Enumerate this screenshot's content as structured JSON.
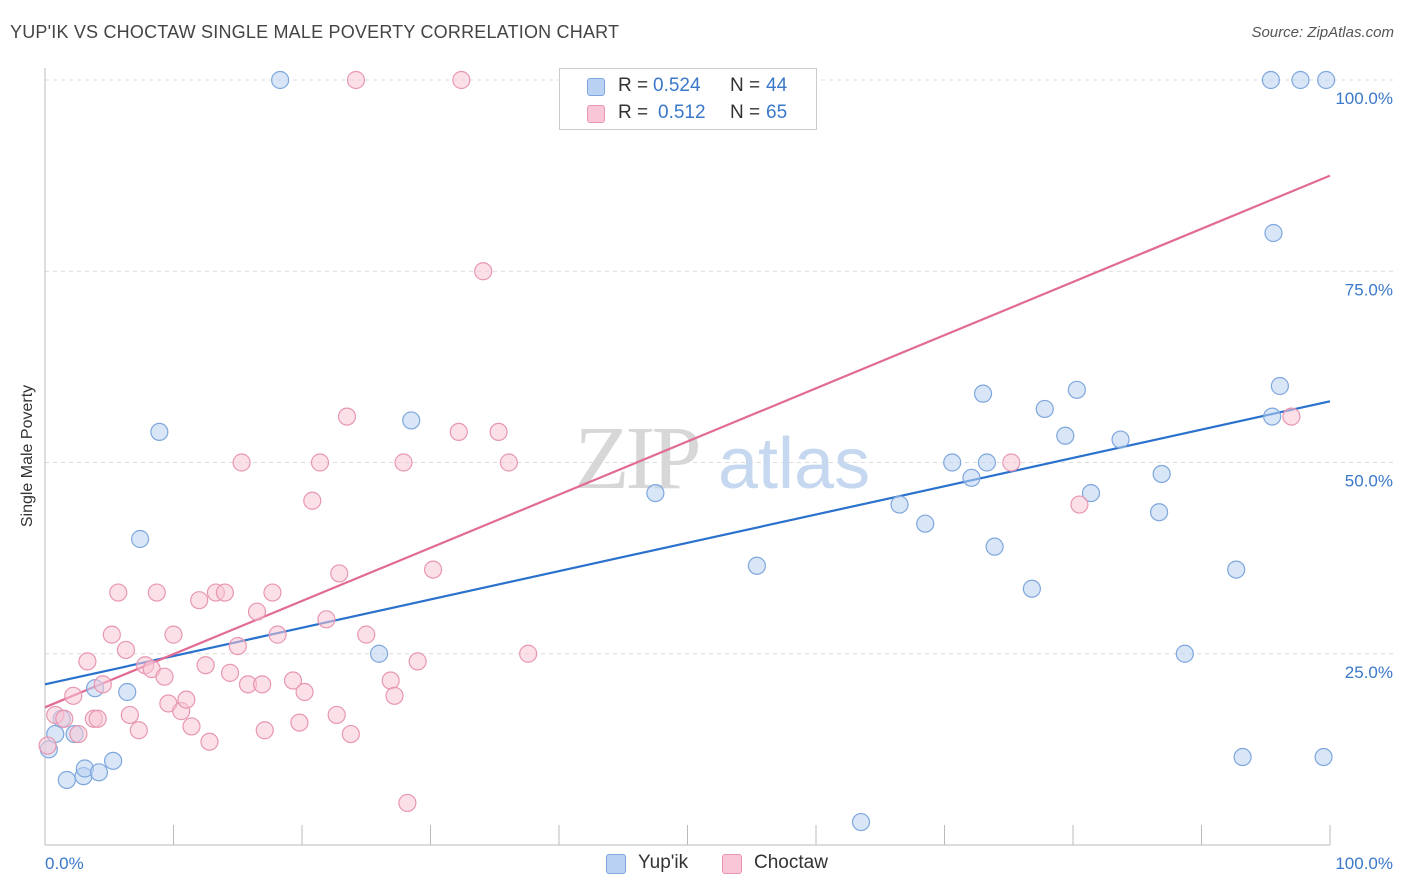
{
  "title": "YUP'IK VS CHOCTAW SINGLE MALE POVERTY CORRELATION CHART",
  "source": "Source: ZipAtlas.com",
  "watermark": {
    "zip": "ZIP",
    "atlas": "atlas"
  },
  "legend": {
    "rows": [
      {
        "r_label": "R =",
        "r_value": "0.524",
        "n_label": "N =",
        "n_value": "44"
      },
      {
        "r_label": "R =",
        "r_value": "0.512",
        "n_label": "N =",
        "n_value": "65"
      }
    ]
  },
  "colors": {
    "yupik_fill": "#b9d2f3",
    "yupik_stroke": "#7ea7dd",
    "yupik_line": "#2b72cc",
    "choctaw_fill": "#f8c6d6",
    "choctaw_stroke": "#e897b1",
    "choctaw_line": "#e16b95",
    "tick_text": "#3a78c9",
    "grid": "#dcdcdc"
  },
  "chart_data": {
    "type": "scatter",
    "title": "YUP'IK VS CHOCTAW SINGLE MALE POVERTY CORRELATION CHART",
    "xlabel": "",
    "ylabel": "Single Male Poverty",
    "xlim": [
      0,
      100
    ],
    "ylim": [
      0,
      100
    ],
    "x_tick_labels": [
      "0.0%",
      "100.0%"
    ],
    "y_ticks": [
      25,
      50,
      75,
      100
    ],
    "y_tick_labels": [
      "25.0%",
      "50.0%",
      "75.0%",
      "100.0%"
    ],
    "grid": true,
    "legend_position": "top-center",
    "series": [
      {
        "name": "Yup'ik",
        "r": 0.524,
        "n": 44,
        "trend": {
          "x0": 0,
          "y0": 21,
          "x1": 100,
          "y1": 58
        },
        "points": [
          [
            0.3,
            12.5
          ],
          [
            0.8,
            14.5
          ],
          [
            1.3,
            16.5
          ],
          [
            1.7,
            8.5
          ],
          [
            2.3,
            14.5
          ],
          [
            3.0,
            9
          ],
          [
            3.1,
            10
          ],
          [
            3.9,
            20.5
          ],
          [
            4.2,
            9.5
          ],
          [
            5.3,
            11
          ],
          [
            6.4,
            20
          ],
          [
            7.4,
            40
          ],
          [
            8.9,
            54
          ],
          [
            18.3,
            100
          ],
          [
            26.0,
            25
          ],
          [
            28.5,
            55.5
          ],
          [
            47.5,
            46
          ],
          [
            55.4,
            36.5
          ],
          [
            63.5,
            3
          ],
          [
            66.5,
            44.5
          ],
          [
            68.5,
            42
          ],
          [
            70.6,
            50
          ],
          [
            72.1,
            48
          ],
          [
            73.0,
            59
          ],
          [
            73.3,
            50
          ],
          [
            73.9,
            39
          ],
          [
            76.8,
            33.5
          ],
          [
            77.8,
            57
          ],
          [
            79.4,
            53.5
          ],
          [
            80.3,
            59.5
          ],
          [
            81.4,
            46
          ],
          [
            83.7,
            53
          ],
          [
            86.7,
            43.5
          ],
          [
            86.9,
            48.5
          ],
          [
            88.7,
            25
          ],
          [
            92.7,
            36
          ],
          [
            93.2,
            11.5
          ],
          [
            95.4,
            100
          ],
          [
            95.5,
            56
          ],
          [
            95.6,
            80
          ],
          [
            96.1,
            60
          ],
          [
            97.7,
            100
          ],
          [
            99.5,
            11.5
          ],
          [
            99.7,
            100
          ]
        ]
      },
      {
        "name": "Choctaw",
        "r": 0.512,
        "n": 65,
        "trend": {
          "x0": 0,
          "y0": 18,
          "x1": 100,
          "y1": 87.5
        },
        "points": [
          [
            0.2,
            13
          ],
          [
            0.8,
            17
          ],
          [
            1.5,
            16.5
          ],
          [
            2.2,
            19.5
          ],
          [
            2.6,
            14.5
          ],
          [
            3.3,
            24
          ],
          [
            3.8,
            16.5
          ],
          [
            4.1,
            16.5
          ],
          [
            4.5,
            21
          ],
          [
            5.2,
            27.5
          ],
          [
            5.7,
            33
          ],
          [
            6.3,
            25.5
          ],
          [
            6.6,
            17
          ],
          [
            7.3,
            15
          ],
          [
            7.8,
            23.5
          ],
          [
            8.3,
            23
          ],
          [
            8.7,
            33
          ],
          [
            9.3,
            22
          ],
          [
            9.6,
            18.5
          ],
          [
            10.0,
            27.5
          ],
          [
            10.6,
            17.5
          ],
          [
            11.0,
            19
          ],
          [
            11.4,
            15.5
          ],
          [
            12.0,
            32
          ],
          [
            12.5,
            23.5
          ],
          [
            12.8,
            13.5
          ],
          [
            13.3,
            33
          ],
          [
            14.0,
            33
          ],
          [
            14.4,
            22.5
          ],
          [
            15.0,
            26
          ],
          [
            15.3,
            50
          ],
          [
            15.8,
            21
          ],
          [
            16.5,
            30.5
          ],
          [
            16.9,
            21
          ],
          [
            17.1,
            15
          ],
          [
            17.7,
            33
          ],
          [
            18.1,
            27.5
          ],
          [
            19.3,
            21.5
          ],
          [
            19.8,
            16
          ],
          [
            20.2,
            20
          ],
          [
            20.8,
            45
          ],
          [
            21.4,
            50
          ],
          [
            21.9,
            29.5
          ],
          [
            22.7,
            17
          ],
          [
            22.9,
            35.5
          ],
          [
            23.5,
            56
          ],
          [
            23.8,
            14.5
          ],
          [
            24.2,
            100
          ],
          [
            25.0,
            27.5
          ],
          [
            26.9,
            21.5
          ],
          [
            27.2,
            19.5
          ],
          [
            27.9,
            50
          ],
          [
            28.2,
            5.5
          ],
          [
            29.0,
            24
          ],
          [
            30.2,
            36
          ],
          [
            32.2,
            54
          ],
          [
            32.4,
            100
          ],
          [
            34.1,
            75
          ],
          [
            35.3,
            54
          ],
          [
            36.1,
            50
          ],
          [
            37.6,
            25
          ],
          [
            45.4,
            100
          ],
          [
            75.2,
            50
          ],
          [
            80.5,
            44.5
          ],
          [
            97.0,
            56
          ]
        ]
      }
    ]
  }
}
